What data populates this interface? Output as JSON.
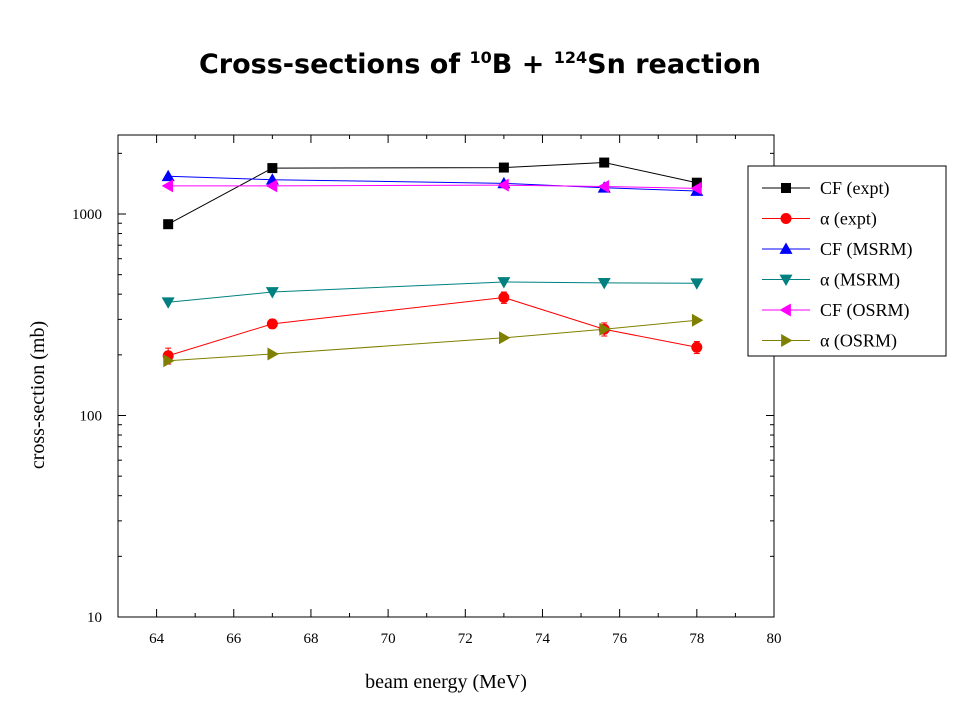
{
  "title": {
    "prefix": "Cross-sections of ",
    "sup1": "10",
    "mid": "B + ",
    "sup2": "124",
    "suffix": "Sn reaction"
  },
  "chart_data": {
    "type": "line",
    "title": "Cross-sections of 10B + 124Sn reaction",
    "xlabel": "beam energy (MeV)",
    "ylabel": "cross-section (mb)",
    "xlim": [
      63,
      80
    ],
    "ylim": [
      10,
      2500
    ],
    "yscale": "log",
    "xticks": [
      64,
      66,
      68,
      70,
      72,
      74,
      76,
      78,
      80
    ],
    "yticks": [
      10,
      100,
      1000
    ],
    "ytick_labels": [
      "10",
      "100",
      "1000"
    ],
    "legend_position": "top-right",
    "series": [
      {
        "name": "CF (expt)",
        "marker": "square",
        "color": "#000000",
        "x": [
          64.3,
          67,
          73,
          75.6,
          78
        ],
        "y": [
          890,
          1690,
          1700,
          1800,
          1430
        ],
        "yerr": [
          40,
          60,
          60,
          60,
          50
        ]
      },
      {
        "name": "α (expt)",
        "marker": "circle",
        "color": "#ff0000",
        "x": [
          64.3,
          67,
          73,
          75.6,
          78
        ],
        "y": [
          198,
          285,
          385,
          268,
          218
        ],
        "yerr": [
          18,
          15,
          25,
          20,
          15
        ]
      },
      {
        "name": "CF (MSRM)",
        "marker": "triangle-up",
        "color": "#0000ff",
        "x": [
          64.3,
          67,
          73,
          75.6,
          78
        ],
        "y": [
          1540,
          1480,
          1420,
          1350,
          1300
        ]
      },
      {
        "name": "α (MSRM)",
        "marker": "triangle-down",
        "color": "#008080",
        "x": [
          64.3,
          67,
          73,
          75.6,
          78
        ],
        "y": [
          365,
          410,
          460,
          455,
          453
        ]
      },
      {
        "name": "CF (OSRM)",
        "marker": "triangle-left",
        "color": "#ff00ff",
        "x": [
          64.3,
          67,
          73,
          75.6,
          78
        ],
        "y": [
          1380,
          1380,
          1390,
          1370,
          1340
        ]
      },
      {
        "name": "α (OSRM)",
        "marker": "triangle-right",
        "color": "#808000",
        "x": [
          64.3,
          67,
          73,
          75.6,
          78
        ],
        "y": [
          187,
          202,
          243,
          268,
          297
        ]
      }
    ]
  }
}
